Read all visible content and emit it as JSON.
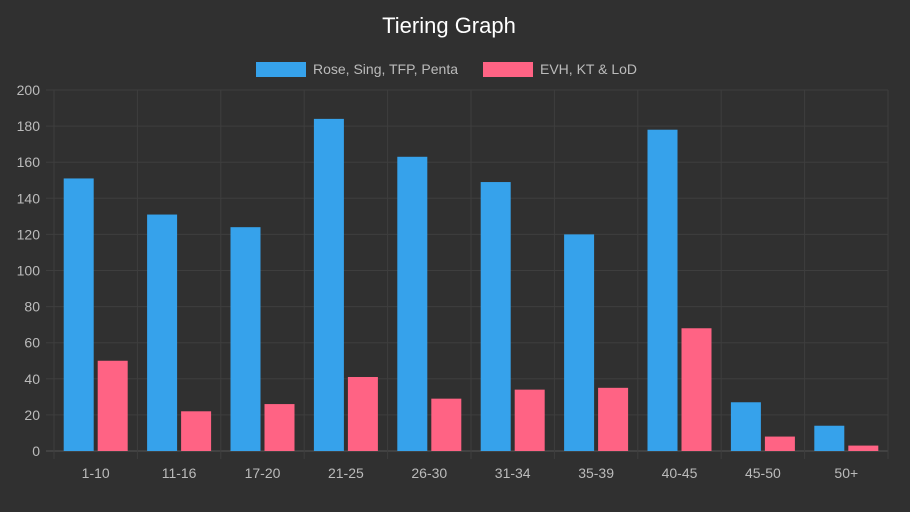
{
  "chart_data": {
    "type": "bar",
    "title": "Tiering Graph",
    "xlabel": "",
    "ylabel": "",
    "ylim": [
      0,
      200
    ],
    "ytick_step": 20,
    "grid": true,
    "legend_position": "top-center",
    "categories": [
      "1-10",
      "11-16",
      "17-20",
      "21-25",
      "26-30",
      "31-34",
      "35-39",
      "40-45",
      "45-50",
      "50+"
    ],
    "series": [
      {
        "name": "Rose, Sing, TFP, Penta",
        "color": "#36a2eb",
        "values": [
          151,
          131,
          124,
          184,
          163,
          149,
          120,
          178,
          27,
          14
        ]
      },
      {
        "name": "EVH, KT & LoD",
        "color": "#ff6384",
        "values": [
          50,
          22,
          26,
          41,
          29,
          34,
          35,
          68,
          8,
          3
        ]
      }
    ]
  },
  "colors": {
    "background": "#303030",
    "grid": "#3e3e3e",
    "text": "#bbbbbb",
    "title": "#ffffff"
  }
}
